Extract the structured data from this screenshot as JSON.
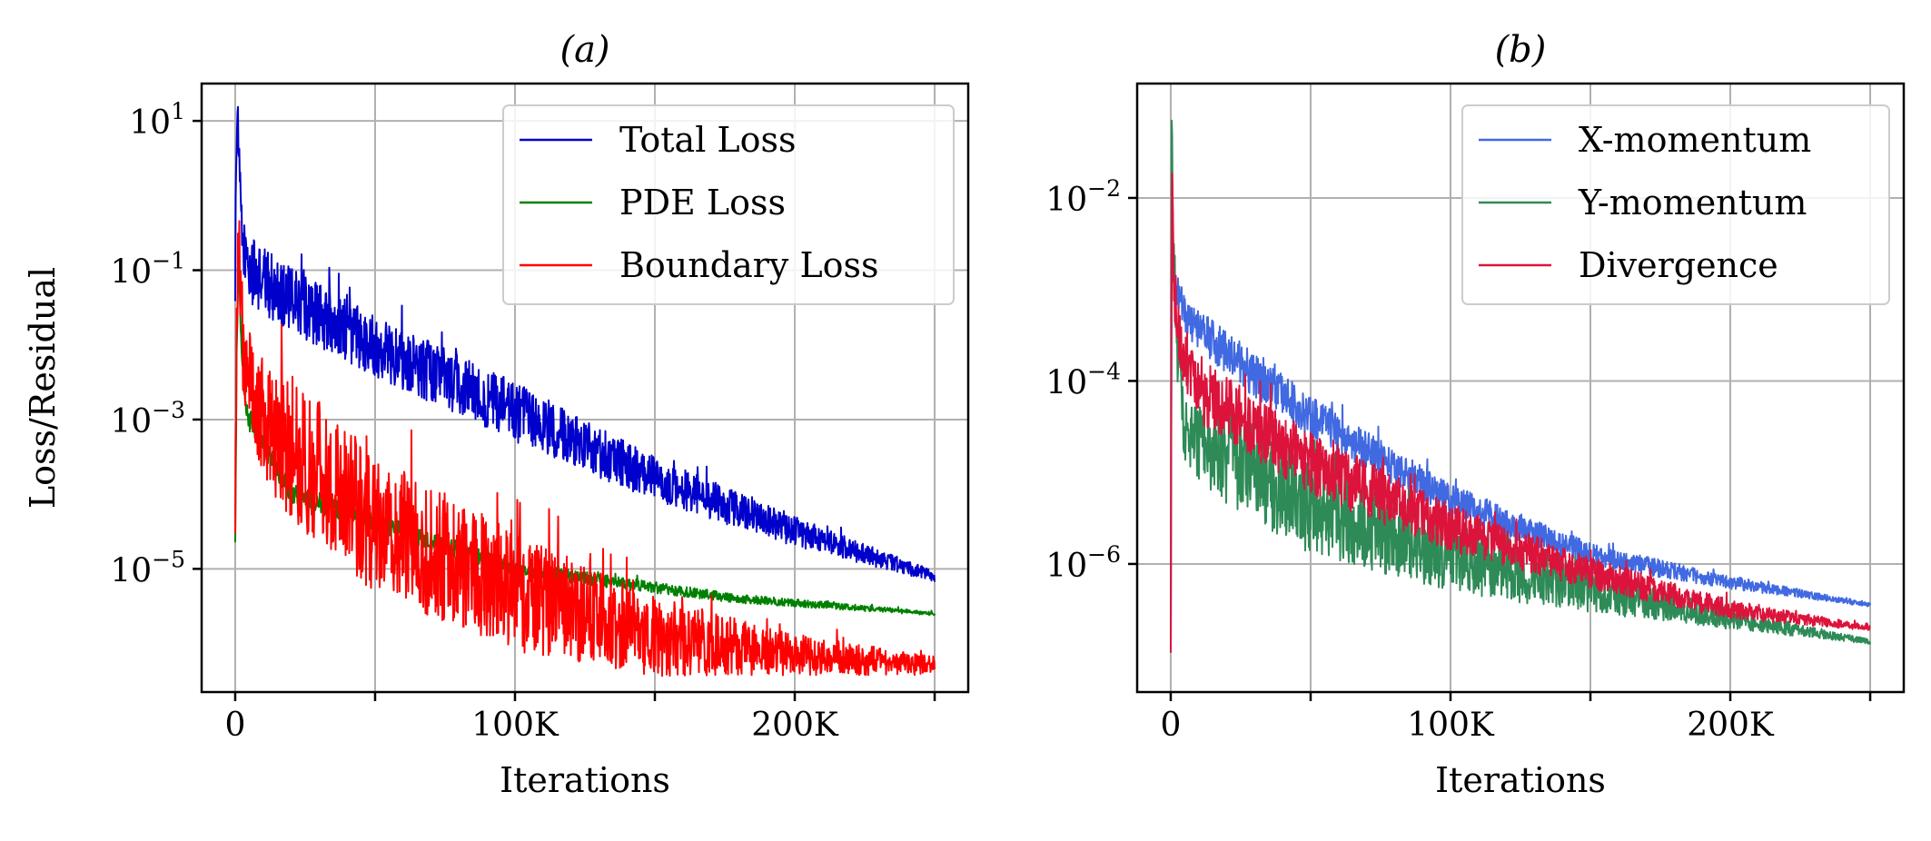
{
  "chart_data": [
    {
      "type": "line",
      "title": "(a)",
      "xlabel": "Iterations",
      "ylabel": "Loss/Residual",
      "yscale": "log",
      "xlim": [
        -12000,
        262000
      ],
      "ylim_exp": [
        -6.65,
        1.5
      ],
      "grid": true,
      "legend_placement": "top-right",
      "xticks": [
        {
          "value": 0,
          "label": "0"
        },
        {
          "value": 50000,
          "label": ""
        },
        {
          "value": 100000,
          "label": "100K"
        },
        {
          "value": 150000,
          "label": ""
        },
        {
          "value": 200000,
          "label": "200K"
        },
        {
          "value": 250000,
          "label": ""
        }
      ],
      "yticks": [
        {
          "exp": 1,
          "base": "10",
          "sup": "1"
        },
        {
          "exp": -1,
          "base": "10",
          "sup": "−1"
        },
        {
          "exp": -3,
          "base": "10",
          "sup": "−3"
        },
        {
          "exp": -5,
          "base": "10",
          "sup": "−5"
        }
      ],
      "series": [
        {
          "name": "Total Loss",
          "color": "#0000cc",
          "points": [
            [
              0,
              -1.2
            ],
            [
              300,
              0.6
            ],
            [
              800,
              1.1
            ],
            [
              1500,
              0.3
            ],
            [
              2500,
              -0.6
            ],
            [
              5000,
              -1.0
            ],
            [
              20000,
              -1.4
            ],
            [
              50000,
              -2.0
            ],
            [
              100000,
              -2.9
            ],
            [
              150000,
              -3.8
            ],
            [
              200000,
              -4.5
            ],
            [
              250000,
              -5.1
            ]
          ],
          "noise": [
            [
              0,
              0.5
            ],
            [
              5000,
              0.9
            ],
            [
              100000,
              0.8
            ],
            [
              200000,
              0.4
            ],
            [
              250000,
              0.15
            ]
          ]
        },
        {
          "name": "PDE Loss",
          "color": "#008000",
          "points": [
            [
              0,
              -4.6
            ],
            [
              500,
              -2.2
            ],
            [
              1200,
              -0.8
            ],
            [
              1800,
              -1.6
            ],
            [
              3000,
              -2.6
            ],
            [
              5000,
              -3.0
            ],
            [
              20000,
              -4.0
            ],
            [
              100000,
              -5.0
            ],
            [
              180000,
              -5.4
            ],
            [
              250000,
              -5.6
            ]
          ],
          "noise": [
            [
              0,
              0.3
            ],
            [
              250000,
              0.05
            ]
          ]
        },
        {
          "name": "Boundary Loss",
          "color": "#ff0000",
          "points": [
            [
              0,
              -4.6
            ],
            [
              500,
              -1.8
            ],
            [
              1200,
              -0.2
            ],
            [
              2000,
              -1.5
            ],
            [
              3000,
              -2.1
            ],
            [
              10000,
              -3.0
            ],
            [
              50000,
              -4.4
            ],
            [
              100000,
              -5.3
            ],
            [
              150000,
              -5.9
            ],
            [
              200000,
              -6.15
            ],
            [
              250000,
              -6.3
            ]
          ],
          "noise": [
            [
              0,
              1.2
            ],
            [
              20000,
              2.0
            ],
            [
              100000,
              1.6
            ],
            [
              200000,
              0.55
            ],
            [
              250000,
              0.25
            ]
          ]
        }
      ]
    },
    {
      "type": "line",
      "title": "(b)",
      "xlabel": "Iterations",
      "ylabel": "",
      "yscale": "log",
      "xlim": [
        -12000,
        262000
      ],
      "ylim_exp": [
        -7.4,
        -0.75
      ],
      "grid": true,
      "legend_placement": "top-right",
      "xticks": [
        {
          "value": 0,
          "label": "0"
        },
        {
          "value": 50000,
          "label": ""
        },
        {
          "value": 100000,
          "label": "100K"
        },
        {
          "value": 150000,
          "label": ""
        },
        {
          "value": 200000,
          "label": "200K"
        },
        {
          "value": 250000,
          "label": ""
        }
      ],
      "yticks": [
        {
          "exp": -2,
          "base": "10",
          "sup": "−2"
        },
        {
          "exp": -4,
          "base": "10",
          "sup": "−4"
        },
        {
          "exp": -6,
          "base": "10",
          "sup": "−6"
        }
      ],
      "series": [
        {
          "name": "Y-momentum",
          "color": "#2e8b57",
          "points": [
            [
              0,
              -7.0
            ],
            [
              300,
              -1.0
            ],
            [
              800,
              -2.5
            ],
            [
              2000,
              -3.6
            ],
            [
              5000,
              -4.6
            ],
            [
              20000,
              -4.8
            ],
            [
              50000,
              -5.4
            ],
            [
              100000,
              -5.9
            ],
            [
              150000,
              -6.3
            ],
            [
              200000,
              -6.6
            ],
            [
              250000,
              -6.85
            ]
          ],
          "noise": [
            [
              0,
              0.6
            ],
            [
              20000,
              1.1
            ],
            [
              100000,
              0.8
            ],
            [
              180000,
              0.3
            ],
            [
              250000,
              0.05
            ]
          ]
        },
        {
          "name": "X-momentum",
          "color": "#4169e1",
          "points": [
            [
              0,
              -7.1
            ],
            [
              300,
              -2.5
            ],
            [
              1000,
              -3.0
            ],
            [
              2500,
              -3.0
            ],
            [
              5000,
              -3.3
            ],
            [
              20000,
              -3.7
            ],
            [
              50000,
              -4.4
            ],
            [
              100000,
              -5.3
            ],
            [
              150000,
              -5.9
            ],
            [
              200000,
              -6.2
            ],
            [
              250000,
              -6.45
            ]
          ],
          "noise": [
            [
              0,
              0.4
            ],
            [
              30000,
              0.5
            ],
            [
              150000,
              0.25
            ],
            [
              250000,
              0.04
            ]
          ]
        },
        {
          "name": "Divergence",
          "color": "#dc143c",
          "points": [
            [
              0,
              -6.8
            ],
            [
              400,
              -1.8
            ],
            [
              1200,
              -3.0
            ],
            [
              3000,
              -3.6
            ],
            [
              10000,
              -4.1
            ],
            [
              50000,
              -4.9
            ],
            [
              100000,
              -5.6
            ],
            [
              150000,
              -6.1
            ],
            [
              200000,
              -6.5
            ],
            [
              250000,
              -6.7
            ]
          ],
          "noise": [
            [
              0,
              0.7
            ],
            [
              50000,
              0.7
            ],
            [
              150000,
              0.35
            ],
            [
              250000,
              0.06
            ]
          ]
        }
      ],
      "legend_order": [
        "X-momentum",
        "Y-momentum",
        "Divergence"
      ]
    }
  ]
}
